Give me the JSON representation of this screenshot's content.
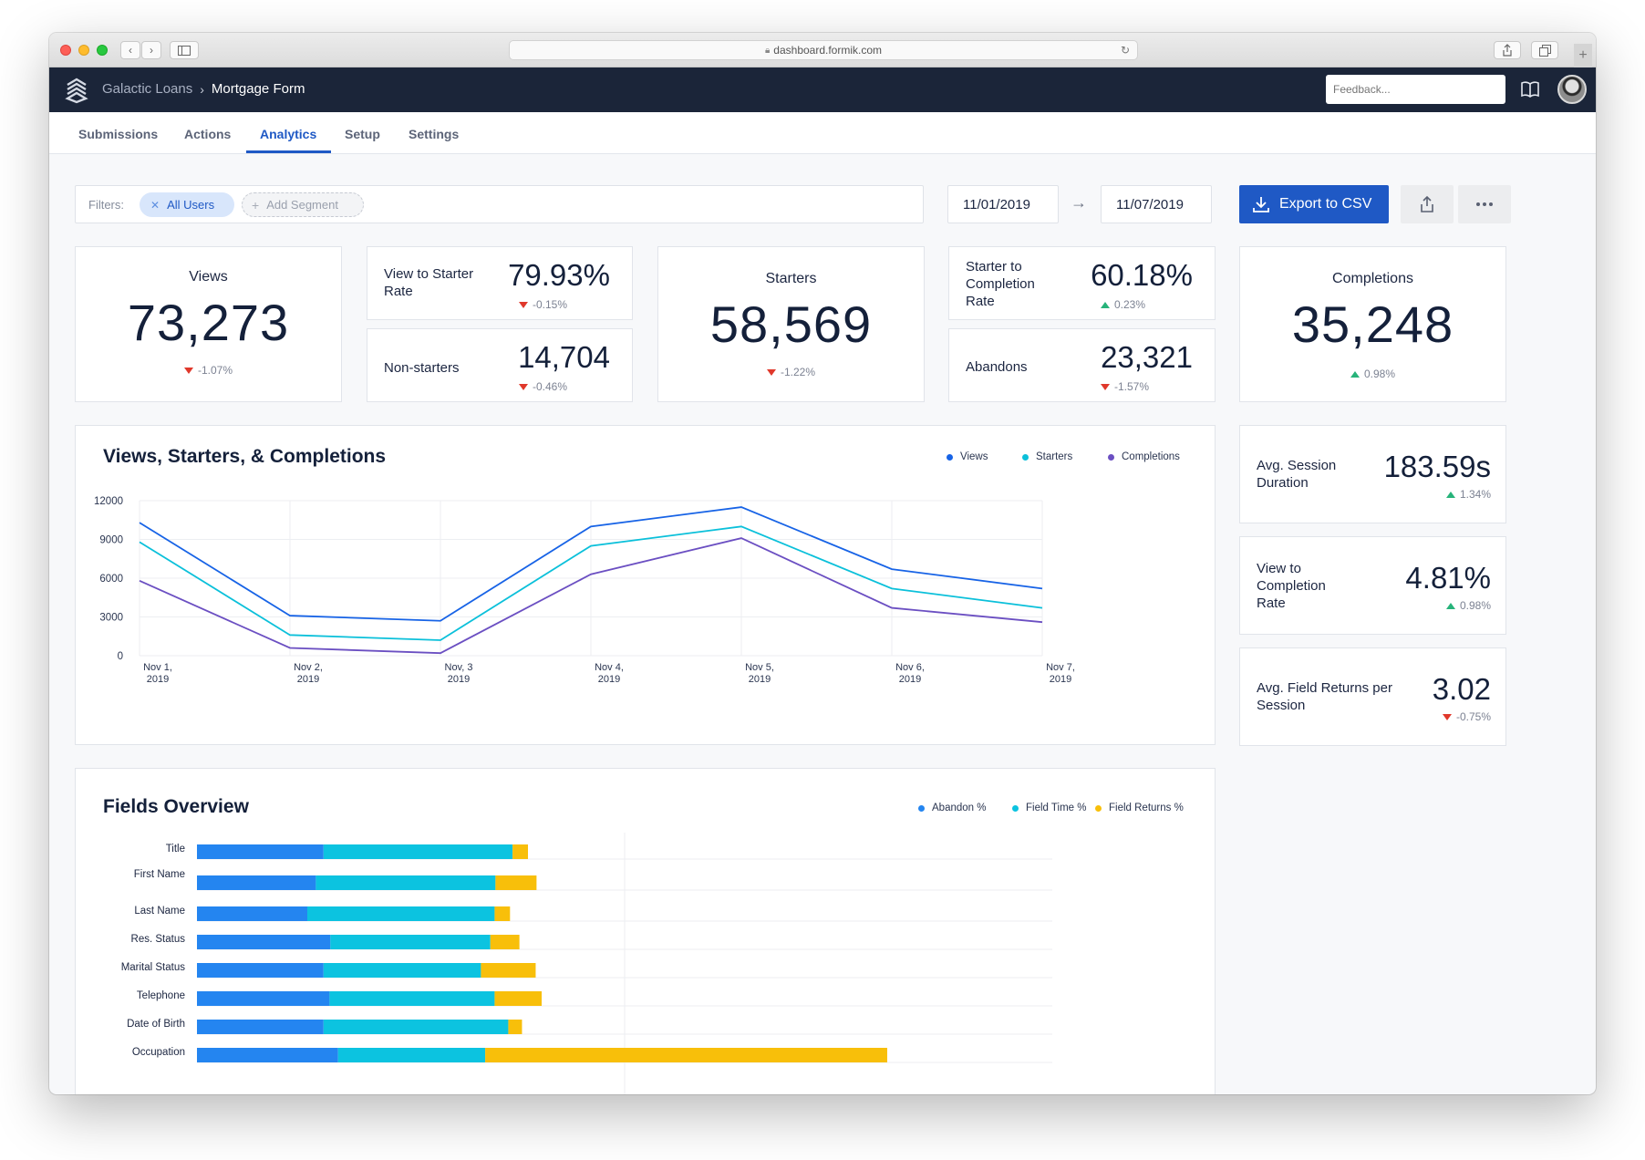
{
  "browser": {
    "url": "dashboard.formik.com"
  },
  "header": {
    "breadcrumb_parent": "Galactic Loans",
    "breadcrumb_current": "Mortgage Form",
    "feedback_placeholder": "Feedback..."
  },
  "tabs": [
    {
      "label": "Submissions",
      "active": false
    },
    {
      "label": "Actions",
      "active": false
    },
    {
      "label": "Analytics",
      "active": true
    },
    {
      "label": "Setup",
      "active": false
    },
    {
      "label": "Settings",
      "active": false
    }
  ],
  "filters": {
    "label": "Filters:",
    "active_chip": "All Users",
    "add_chip": "Add Segment"
  },
  "date_range": {
    "start": "11/01/2019",
    "end": "11/07/2019",
    "arrow": "→"
  },
  "toolbar": {
    "export_label": "Export to CSV",
    "share_icon": "share-icon",
    "more_icon": "more-icon"
  },
  "metrics": {
    "views": {
      "label": "Views",
      "value": "73,273",
      "delta": "-1.07%",
      "direction": "down"
    },
    "view_to_starter": {
      "label": "View to Starter Rate",
      "value": "79.93%",
      "delta": "-0.15%",
      "direction": "down"
    },
    "non_starters": {
      "label": "Non-starters",
      "value": "14,704",
      "delta": "-0.46%",
      "direction": "down"
    },
    "starters": {
      "label": "Starters",
      "value": "58,569",
      "delta": "-1.22%",
      "direction": "down"
    },
    "starter_to_completion": {
      "label": "Starter to Completion Rate",
      "value": "60.18%",
      "delta": "0.23%",
      "direction": "up"
    },
    "abandons": {
      "label": "Abandons",
      "value": "23,321",
      "delta": "-1.57%",
      "direction": "down"
    },
    "completions": {
      "label": "Completions",
      "value": "35,248",
      "delta": "0.98%",
      "direction": "up"
    },
    "avg_session": {
      "label": "Avg. Session Duration",
      "value": "183.59s",
      "delta": "1.34%",
      "direction": "up"
    },
    "view_to_completion": {
      "label": "View to Completion Rate",
      "value": "4.81%",
      "delta": "0.98%",
      "direction": "up"
    },
    "avg_field_returns": {
      "label": "Avg. Field Returns per Session",
      "value": "3.02",
      "delta": "-0.75%",
      "direction": "down"
    }
  },
  "colors": {
    "accent": "#1f59c5",
    "views": "#1763e6",
    "starters": "#0bc0da",
    "completions": "#6b4fc2",
    "abandon": "#2485f0",
    "field_time": "#0cc3e0",
    "field_returns": "#f8bf0a",
    "down": "#e0382b",
    "up": "#27b37a"
  },
  "chart_data": [
    {
      "type": "line",
      "title": "Views, Starters, & Completions",
      "categories": [
        "Nov 1, 2019",
        "Nov 2, 2019",
        "Nov 3 2019",
        "Nov 4, 2019",
        "Nov 5, 2019",
        "Nov 6, 2019",
        "Nov 7, 2019"
      ],
      "category_lines": [
        [
          "Nov 1,",
          "2019"
        ],
        [
          "Nov 2,",
          "2019"
        ],
        [
          "Nov, 3",
          "2019"
        ],
        [
          "Nov 4,",
          "2019"
        ],
        [
          "Nov 5,",
          "2019"
        ],
        [
          "Nov 6,",
          "2019"
        ],
        [
          "Nov 7,",
          "2019"
        ]
      ],
      "yticks": [
        0,
        3000,
        6000,
        9000,
        12000
      ],
      "ylim": [
        0,
        12000
      ],
      "grid": true,
      "legend_position": "top-right",
      "series": [
        {
          "name": "Views",
          "values": [
            10300,
            3100,
            2700,
            10000,
            11500,
            6700,
            5200
          ]
        },
        {
          "name": "Starters",
          "values": [
            8800,
            1600,
            1200,
            8500,
            10000,
            5200,
            3700
          ]
        },
        {
          "name": "Completions",
          "values": [
            5800,
            600,
            200,
            6300,
            9100,
            3700,
            2600
          ]
        }
      ]
    },
    {
      "type": "bar",
      "stacked": true,
      "orientation": "horizontal",
      "title": "Fields Overview",
      "legend_position": "top-right",
      "categories": [
        "Title",
        "First Name",
        "Last Name",
        "Res. Status",
        "Marital Status",
        "Telephone",
        "Date of Birth",
        "Occupation"
      ],
      "series": [
        {
          "name": "Abandon %",
          "values": [
            14.8,
            13.9,
            12.9,
            15.6,
            14.8,
            15.5,
            14.8,
            16.5
          ]
        },
        {
          "name": "Field Time %",
          "values": [
            22.1,
            21.0,
            21.9,
            18.7,
            18.4,
            19.3,
            21.6,
            17.2
          ]
        },
        {
          "name": "Field Returns %",
          "values": [
            1.8,
            4.8,
            1.8,
            3.4,
            6.4,
            5.5,
            1.6,
            47.0
          ]
        }
      ]
    }
  ]
}
